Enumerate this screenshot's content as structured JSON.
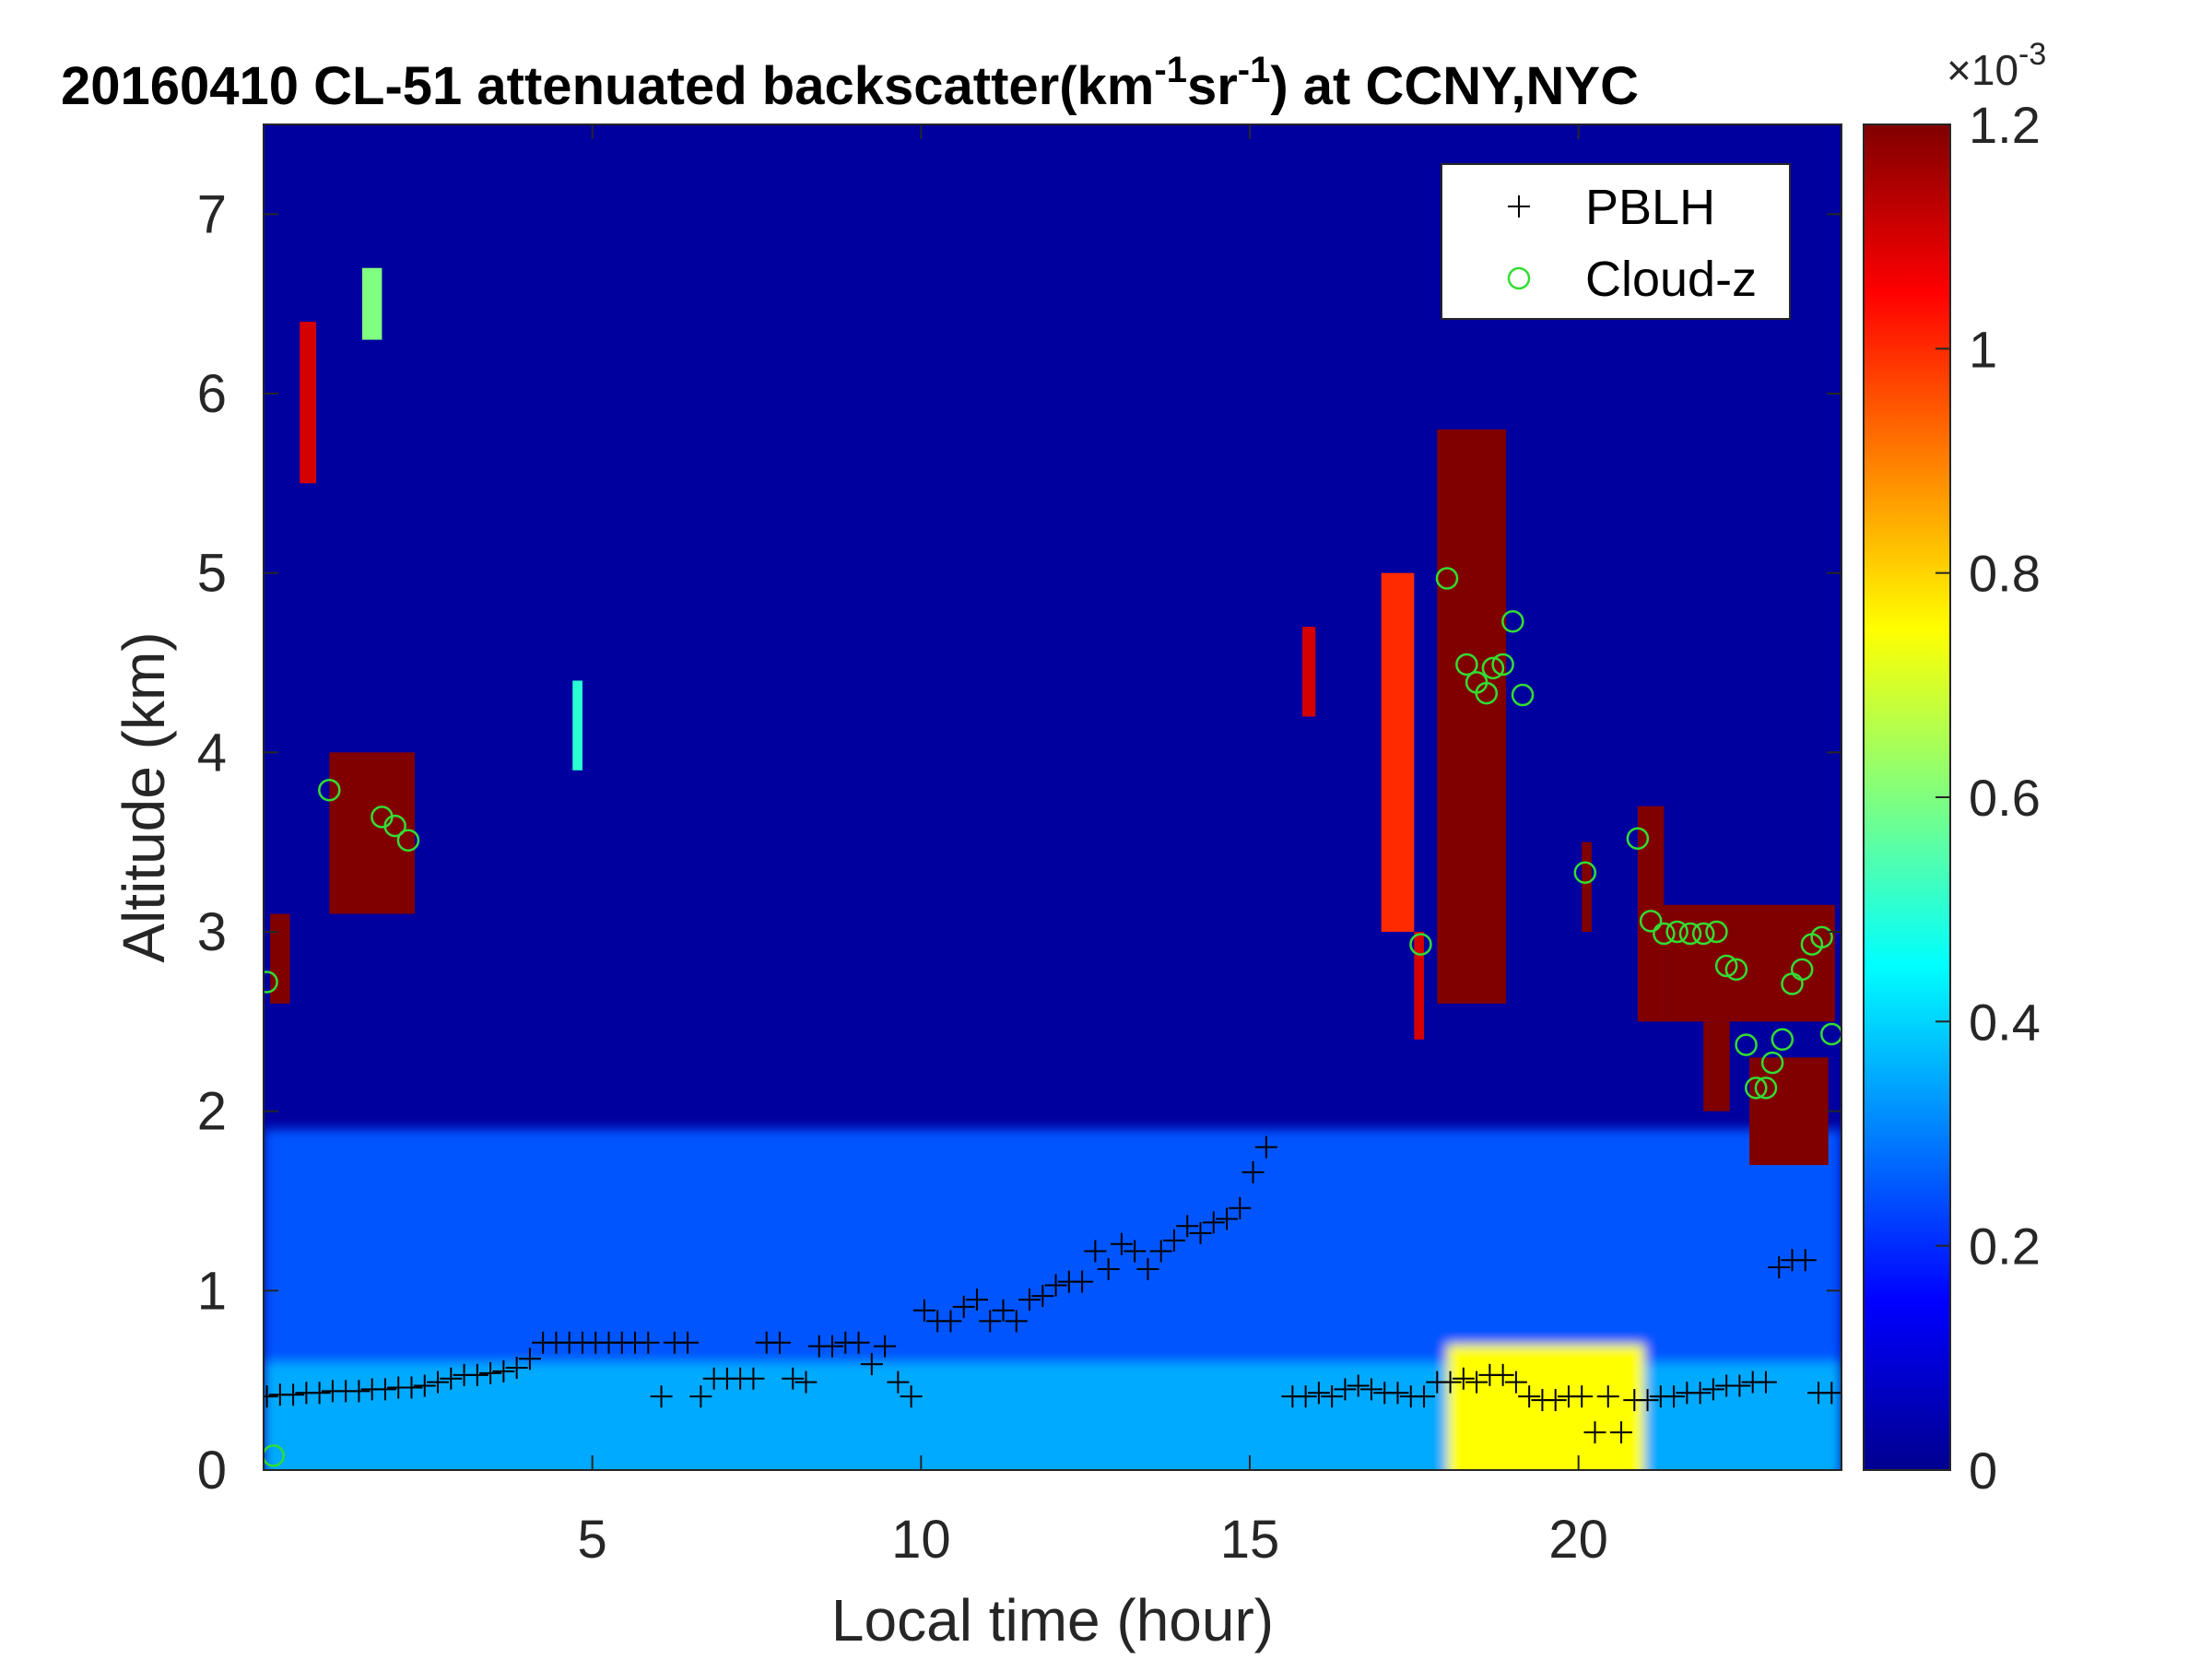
{
  "figure": {
    "title_parts": {
      "main": "20160410  CL-51 attenuated backscatter(km",
      "exp1": "-1",
      "mid": "sr",
      "exp2": "-1",
      "tail": ") at CCNY,NYC"
    },
    "colorbar_multiplier": {
      "base": "×10",
      "exponent": "-3"
    }
  },
  "colors": {
    "colormap": [
      "#00008f",
      "#0000ff",
      "#00ffff",
      "#ffff00",
      "#ff0000",
      "#800000"
    ],
    "pblh_marker": "#000000",
    "cloud_marker": "#33dd33"
  },
  "chart_data": {
    "type": "heatmap",
    "title": "20160410  CL-51 attenuated backscatter(km-1sr-1) at CCNY,NYC",
    "xlabel": "Local time (hour)",
    "ylabel": "Altitude (km)",
    "xlim": [
      0,
      24
    ],
    "ylim": [
      0,
      7.5
    ],
    "xticks": [
      5,
      10,
      15,
      20
    ],
    "xtick_labels": [
      "5",
      "10",
      "15",
      "20"
    ],
    "yticks": [
      0,
      1,
      2,
      3,
      4,
      5,
      6,
      7
    ],
    "ytick_labels": [
      "0",
      "1",
      "2",
      "3",
      "4",
      "5",
      "6",
      "7"
    ],
    "colorbar": {
      "range": [
        0,
        1.2
      ],
      "ticks": [
        0,
        0.2,
        0.4,
        0.6,
        0.8,
        1,
        1.2
      ],
      "tick_labels": [
        "0",
        "0.2",
        "0.4",
        "0.6",
        "0.8",
        "1",
        "1.2"
      ],
      "colormap": "jet",
      "multiplier_label": "×10-3"
    },
    "legend": {
      "location": "top-right",
      "entries": [
        {
          "label": "PBLH",
          "marker": "+"
        },
        {
          "label": "Cloud-z",
          "marker": "o"
        }
      ]
    },
    "heatmap_features": [
      {
        "kind": "background",
        "value": 0.02
      },
      {
        "kind": "aerosol_layer",
        "x": [
          0,
          24
        ],
        "top_km": 1.9,
        "value": 0.25
      },
      {
        "kind": "surface_layer",
        "x": [
          0,
          24
        ],
        "top_km": 0.6,
        "value": 0.35
      },
      {
        "kind": "cloud",
        "x": [
          0.1,
          0.4
        ],
        "y": [
          2.6,
          3.1
        ],
        "value": 1.2
      },
      {
        "kind": "cloud",
        "x": [
          0.55,
          0.8
        ],
        "y": [
          5.5,
          6.4
        ],
        "value": 1.1
      },
      {
        "kind": "cloud",
        "x": [
          1.0,
          2.3
        ],
        "y": [
          3.1,
          4.0
        ],
        "value": 1.2
      },
      {
        "kind": "cloud",
        "x": [
          1.5,
          1.8
        ],
        "y": [
          6.3,
          6.7
        ],
        "value": 0.6
      },
      {
        "kind": "cloud",
        "x": [
          4.7,
          4.85
        ],
        "y": [
          3.9,
          4.4
        ],
        "value": 0.5
      },
      {
        "kind": "cloud",
        "x": [
          15.8,
          16.0
        ],
        "y": [
          4.2,
          4.7
        ],
        "value": 1.1
      },
      {
        "kind": "cloud",
        "x": [
          17.0,
          17.5
        ],
        "y": [
          3.0,
          5.0
        ],
        "value": 1.0
      },
      {
        "kind": "cloud",
        "x": [
          17.5,
          17.65
        ],
        "y": [
          2.4,
          3.0
        ],
        "value": 1.1
      },
      {
        "kind": "cloud",
        "x": [
          17.85,
          18.9
        ],
        "y": [
          2.6,
          5.8
        ],
        "value": 1.2
      },
      {
        "kind": "cloud",
        "x": [
          20.05,
          20.2
        ],
        "y": [
          3.0,
          3.5
        ],
        "value": 1.2
      },
      {
        "kind": "cloud",
        "x": [
          20.9,
          21.3
        ],
        "y": [
          2.5,
          3.7
        ],
        "value": 1.2
      },
      {
        "kind": "cloud",
        "x": [
          21.3,
          23.9
        ],
        "y": [
          2.5,
          3.15
        ],
        "value": 1.2
      },
      {
        "kind": "cloud",
        "x": [
          21.9,
          22.3
        ],
        "y": [
          2.0,
          2.5
        ],
        "value": 1.2
      },
      {
        "kind": "cloud",
        "x": [
          22.6,
          23.8
        ],
        "y": [
          1.7,
          2.3
        ],
        "value": 1.2
      },
      {
        "kind": "surface_enhancement",
        "x": [
          18,
          21
        ],
        "y": [
          0,
          0.7
        ],
        "value": 0.75
      }
    ],
    "series": [
      {
        "name": "PBLH",
        "marker": "+",
        "x": [
          0.05,
          0.25,
          0.45,
          0.65,
          0.85,
          1.05,
          1.25,
          1.45,
          1.65,
          1.85,
          2.05,
          2.25,
          2.45,
          2.65,
          2.85,
          3.05,
          3.25,
          3.45,
          3.65,
          3.85,
          4.05,
          4.25,
          4.45,
          4.65,
          4.85,
          5.05,
          5.25,
          5.45,
          5.65,
          5.85,
          6.05,
          6.25,
          6.45,
          6.65,
          6.85,
          7.05,
          7.25,
          7.45,
          7.65,
          7.85,
          8.05,
          8.25,
          8.45,
          8.65,
          8.85,
          9.05,
          9.25,
          9.45,
          9.65,
          9.85,
          10.05,
          10.25,
          10.45,
          10.65,
          10.85,
          11.05,
          11.25,
          11.45,
          11.65,
          11.85,
          12.05,
          12.25,
          12.45,
          12.65,
          12.85,
          13.05,
          13.25,
          13.45,
          13.65,
          13.85,
          14.05,
          14.25,
          14.45,
          14.65,
          14.85,
          15.05,
          15.25,
          15.65,
          15.85,
          16.05,
          16.25,
          16.45,
          16.65,
          16.85,
          17.05,
          17.25,
          17.45,
          17.65,
          17.85,
          18.05,
          18.25,
          18.45,
          18.65,
          18.85,
          19.05,
          19.25,
          19.45,
          19.65,
          19.85,
          20.05,
          20.25,
          20.45,
          20.65,
          20.85,
          21.05,
          21.25,
          21.45,
          21.65,
          21.85,
          22.05,
          22.25,
          22.45,
          22.65,
          22.85,
          23.05,
          23.25,
          23.45,
          23.65,
          23.85
        ],
        "y": [
          0.41,
          0.42,
          0.42,
          0.43,
          0.43,
          0.44,
          0.44,
          0.44,
          0.45,
          0.45,
          0.46,
          0.46,
          0.47,
          0.49,
          0.51,
          0.53,
          0.53,
          0.54,
          0.55,
          0.57,
          0.62,
          0.71,
          0.71,
          0.71,
          0.71,
          0.71,
          0.71,
          0.71,
          0.71,
          0.71,
          0.41,
          0.71,
          0.71,
          0.41,
          0.51,
          0.51,
          0.51,
          0.51,
          0.71,
          0.71,
          0.51,
          0.49,
          0.69,
          0.69,
          0.71,
          0.71,
          0.59,
          0.69,
          0.49,
          0.41,
          0.89,
          0.83,
          0.83,
          0.91,
          0.95,
          0.83,
          0.89,
          0.83,
          0.95,
          0.97,
          1.03,
          1.05,
          1.05,
          1.22,
          1.12,
          1.26,
          1.22,
          1.12,
          1.22,
          1.28,
          1.36,
          1.32,
          1.38,
          1.4,
          1.46,
          1.66,
          1.8,
          0.41,
          0.41,
          0.43,
          0.41,
          0.45,
          0.47,
          0.45,
          0.43,
          0.43,
          0.41,
          0.41,
          0.49,
          0.49,
          0.51,
          0.49,
          0.53,
          0.53,
          0.49,
          0.41,
          0.39,
          0.39,
          0.41,
          0.41,
          0.21,
          0.41,
          0.21,
          0.39,
          0.39,
          0.41,
          0.41,
          0.43,
          0.43,
          0.45,
          0.47,
          0.47,
          0.49,
          0.49,
          1.13,
          1.17,
          1.17,
          0.43,
          0.43
        ]
      },
      {
        "name": "Cloud-z",
        "marker": "o",
        "x": [
          0.05,
          0.15,
          1.0,
          1.8,
          2.0,
          2.2,
          17.6,
          18.0,
          18.3,
          18.45,
          18.6,
          18.7,
          18.85,
          19.0,
          19.15,
          20.1,
          20.9,
          21.1,
          21.3,
          21.5,
          21.7,
          21.9,
          22.1,
          22.25,
          22.4,
          22.55,
          22.7,
          22.85,
          22.95,
          23.1,
          23.25,
          23.4,
          23.55,
          23.7,
          23.85
        ],
        "y": [
          2.72,
          0.08,
          3.79,
          3.64,
          3.59,
          3.51,
          2.93,
          4.97,
          4.49,
          4.39,
          4.33,
          4.47,
          4.49,
          4.73,
          4.32,
          3.33,
          3.52,
          3.06,
          2.99,
          3.0,
          2.99,
          2.99,
          3.0,
          2.81,
          2.79,
          2.37,
          2.13,
          2.13,
          2.27,
          2.4,
          2.71,
          2.79,
          2.93,
          2.97,
          2.43
        ]
      }
    ]
  }
}
